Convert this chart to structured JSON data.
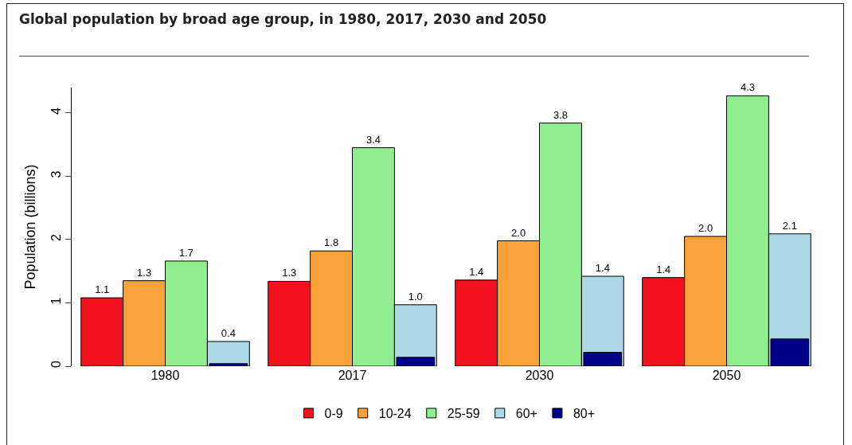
{
  "chart_data": {
    "type": "bar",
    "title": "Global population by broad age group, in 1980, 2017, 2030 and 2050",
    "ylabel": "Population (billions)",
    "categories": [
      "1980",
      "2017",
      "2030",
      "2050"
    ],
    "ylim": [
      0,
      4.4
    ],
    "yticks": [
      0,
      1,
      2,
      3,
      4
    ],
    "grid": false,
    "legend": "bottom",
    "series": [
      {
        "name": "0-9",
        "color": "#f3121f",
        "values": [
          1.08,
          1.34,
          1.36,
          1.4
        ],
        "value_labels": [
          "1.1",
          "1.3",
          "1.4",
          "1.4"
        ]
      },
      {
        "name": "10-24",
        "color": "#f8a23a",
        "values": [
          1.35,
          1.82,
          1.98,
          2.05
        ],
        "value_labels": [
          "1.3",
          "1.8",
          "2.0",
          "2.0"
        ]
      },
      {
        "name": "25-59",
        "color": "#90ee90",
        "values": [
          1.66,
          3.45,
          3.84,
          4.27
        ],
        "value_labels": [
          "1.7",
          "3.4",
          "3.8",
          "4.3"
        ]
      },
      {
        "name": "60+",
        "color": "#add8e6",
        "values": [
          0.39,
          0.97,
          1.42,
          2.09
        ],
        "value_labels": [
          "0.4",
          "1.0",
          "1.4",
          "2.1"
        ]
      },
      {
        "name": "80+",
        "color": "#00008b",
        "values": [
          0.04,
          0.14,
          0.22,
          0.43
        ]
      }
    ]
  }
}
